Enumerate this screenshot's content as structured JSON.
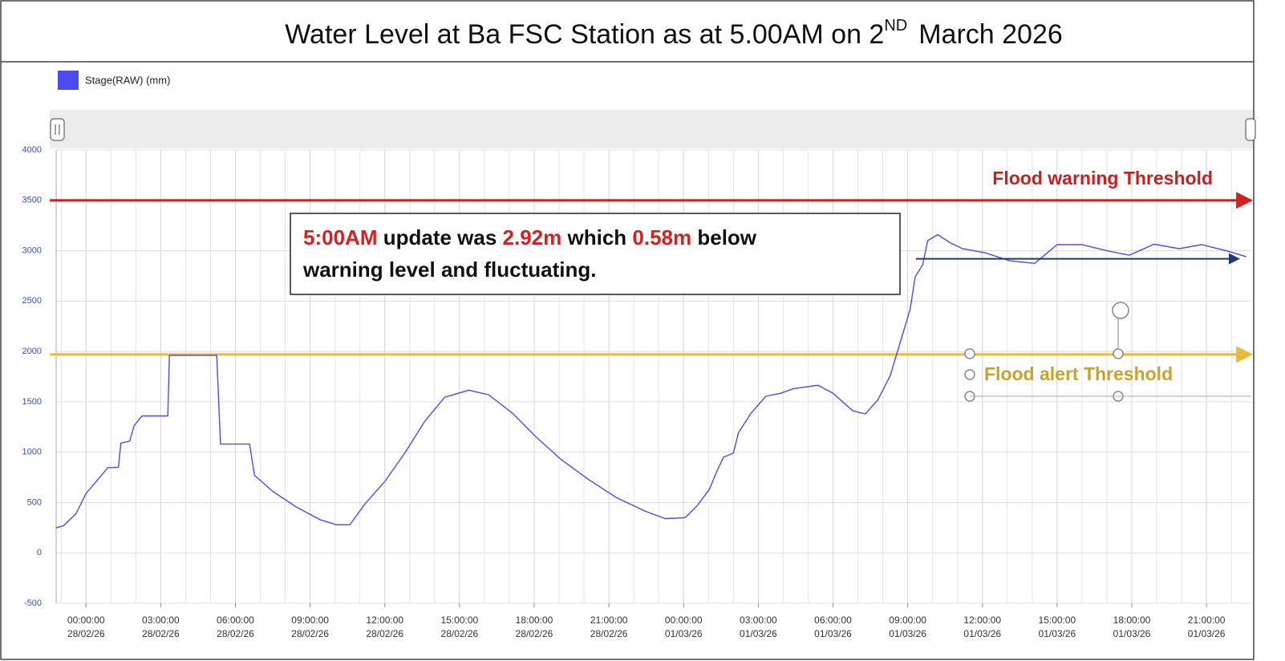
{
  "chart_data": {
    "type": "line",
    "title": [
      "Water Level at Ba FSC Station as at 5.00AM on 2",
      "ND",
      "March 2026"
    ],
    "series": [
      {
        "name": "Stage(RAW) (mm)",
        "color": "#4b4bf2",
        "x": [
          "2026-02-27T22:47",
          "2026-02-27T23:06",
          "2026-02-27T23:36",
          "2026-02-28T00:00",
          "2026-02-28T00:33",
          "2026-02-28T00:52",
          "2026-02-28T01:18",
          "2026-02-28T01:24",
          "2026-02-28T01:45",
          "2026-02-28T01:56",
          "2026-02-28T02:15",
          "2026-02-28T03:17",
          "2026-02-28T03:21",
          "2026-02-28T05:15",
          "2026-02-28T05:24",
          "2026-02-28T06:34",
          "2026-02-28T06:46",
          "2026-02-28T07:30",
          "2026-02-28T08:27",
          "2026-02-28T09:24",
          "2026-02-28T10:03",
          "2026-02-28T10:36",
          "2026-02-28T11:12",
          "2026-02-28T12:00",
          "2026-02-28T12:48",
          "2026-02-28T13:36",
          "2026-02-28T14:24",
          "2026-02-28T15:22",
          "2026-02-28T16:10",
          "2026-02-28T17:08",
          "2026-02-28T18:06",
          "2026-02-28T19:04",
          "2026-02-28T20:12",
          "2026-02-28T21:18",
          "2026-02-28T22:27",
          "2026-02-28T23:16",
          "2026-03-01T00:04",
          "2026-03-01T00:33",
          "2026-03-01T01:02",
          "2026-03-01T01:18",
          "2026-03-01T01:36",
          "2026-03-01T02:00",
          "2026-03-01T02:12",
          "2026-03-01T02:42",
          "2026-03-01T03:18",
          "2026-03-01T03:54",
          "2026-03-01T04:24",
          "2026-03-01T05:24",
          "2026-03-01T06:00",
          "2026-03-01T06:48",
          "2026-03-01T07:18",
          "2026-03-01T07:48",
          "2026-03-01T08:18",
          "2026-03-01T08:40",
          "2026-03-01T09:06",
          "2026-03-01T09:18",
          "2026-03-01T09:36",
          "2026-03-01T09:48",
          "2026-03-01T10:12",
          "2026-03-01T10:42",
          "2026-03-01T11:12",
          "2026-03-01T12:06",
          "2026-03-01T13:06",
          "2026-03-01T14:06",
          "2026-03-01T15:00",
          "2026-03-01T16:00",
          "2026-03-01T17:00",
          "2026-03-01T17:54",
          "2026-03-01T18:54",
          "2026-03-01T19:54",
          "2026-03-01T20:48",
          "2026-03-01T21:48",
          "2026-03-01T22:36"
        ],
        "values": [
          247,
          270,
          390,
          590,
          750,
          845,
          850,
          1090,
          1110,
          1265,
          1360,
          1360,
          1960,
          1960,
          1080,
          1080,
          770,
          610,
          455,
          330,
          280,
          280,
          485,
          710,
          990,
          1305,
          1545,
          1615,
          1570,
          1385,
          1145,
          930,
          725,
          550,
          415,
          340,
          350,
          470,
          630,
          790,
          950,
          990,
          1190,
          1385,
          1555,
          1585,
          1630,
          1665,
          1585,
          1410,
          1380,
          1520,
          1760,
          2065,
          2420,
          2740,
          2860,
          3100,
          3160,
          3080,
          3020,
          2980,
          2900,
          2875,
          3060,
          3060,
          3000,
          2955,
          3065,
          3020,
          3060,
          3000,
          2940
        ]
      }
    ],
    "xlim": [
      "2026-02-27T22:48",
      "2026-03-01T22:48"
    ],
    "xticks": [
      {
        "value": "2026-02-28T00:00",
        "label": [
          "00:00:00",
          "28/02/26"
        ]
      },
      {
        "value": "2026-02-28T03:00",
        "label": [
          "03:00:00",
          "28/02/26"
        ]
      },
      {
        "value": "2026-02-28T06:00",
        "label": [
          "06:00:00",
          "28/02/26"
        ]
      },
      {
        "value": "2026-02-28T09:00",
        "label": [
          "09:00:00",
          "28/02/26"
        ]
      },
      {
        "value": "2026-02-28T12:00",
        "label": [
          "12:00:00",
          "28/02/26"
        ]
      },
      {
        "value": "2026-02-28T15:00",
        "label": [
          "15:00:00",
          "28/02/26"
        ]
      },
      {
        "value": "2026-02-28T18:00",
        "label": [
          "18:00:00",
          "28/02/26"
        ]
      },
      {
        "value": "2026-02-28T21:00",
        "label": [
          "21:00:00",
          "28/02/26"
        ]
      },
      {
        "value": "2026-03-01T00:00",
        "label": [
          "00:00:00",
          "01/03/26"
        ]
      },
      {
        "value": "2026-03-01T03:00",
        "label": [
          "03:00:00",
          "01/03/26"
        ]
      },
      {
        "value": "2026-03-01T06:00",
        "label": [
          "06:00:00",
          "01/03/26"
        ]
      },
      {
        "value": "2026-03-01T09:00",
        "label": [
          "09:00:00",
          "01/03/26"
        ]
      },
      {
        "value": "2026-03-01T12:00",
        "label": [
          "12:00:00",
          "01/03/26"
        ]
      },
      {
        "value": "2026-03-01T15:00",
        "label": [
          "15:00:00",
          "01/03/26"
        ]
      },
      {
        "value": "2026-03-01T18:00",
        "label": [
          "18:00:00",
          "01/03/26"
        ]
      },
      {
        "value": "2026-03-01T21:00",
        "label": [
          "21:00:00",
          "01/03/26"
        ]
      }
    ],
    "ylim": [
      -500,
      4000
    ],
    "yticks": [
      -500,
      0,
      500,
      1000,
      1500,
      2000,
      2500,
      3000,
      3500,
      4000
    ],
    "grid": true,
    "thresholds": [
      {
        "name": "Flood warning Threshold",
        "value": 3500,
        "color": "#d42020",
        "label_color": "#c8201e"
      },
      {
        "name": "Flood alert Threshold",
        "value": 1970,
        "color": "#e9b934",
        "label_color": "#c9a227"
      }
    ],
    "trend_arrow": {
      "value": 2920,
      "x": [
        "2026-03-01T09:20",
        "2026-03-01T22:18"
      ],
      "color": "#1f3a6e"
    },
    "annotation": [
      [
        {
          "text": "5:00AM",
          "color": "#d42020"
        },
        {
          "text": " update was ",
          "color": "#111111"
        },
        {
          "text": "2.92m",
          "color": "#d42020"
        },
        {
          "text": " which ",
          "color": "#111111"
        },
        {
          "text": "0.58m",
          "color": "#d42020"
        },
        {
          "text": " below",
          "color": "#111111"
        }
      ],
      [
        {
          "text": "warning level and fluctuating.",
          "color": "#111111"
        }
      ]
    ]
  }
}
